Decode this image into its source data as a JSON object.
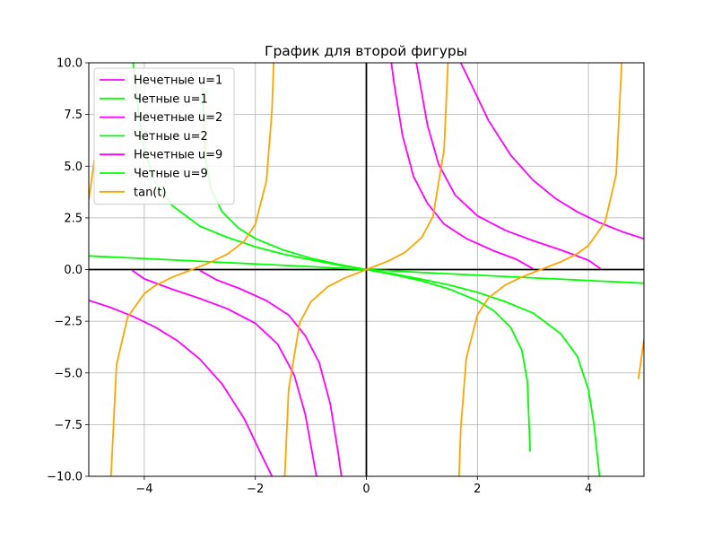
{
  "chart_data": {
    "type": "line",
    "title": "График для второй фигуры",
    "xlim": [
      -5,
      5
    ],
    "ylim": [
      -10,
      10
    ],
    "xticks": [
      -4,
      -2,
      0,
      2,
      4
    ],
    "yticks": [
      -10.0,
      -7.5,
      -5.0,
      -2.5,
      0.0,
      2.5,
      5.0,
      7.5,
      10.0
    ],
    "xtick_labels": [
      "−4",
      "−2",
      "0",
      "2",
      "4"
    ],
    "ytick_labels": [
      "−10.0",
      "−7.5",
      "−5.0",
      "−2.5",
      "0.0",
      "2.5",
      "5.0",
      "7.5",
      "10.0"
    ],
    "grid": true,
    "legend_position": "upper-left",
    "series": [
      {
        "name": "Нечетные u=1",
        "color": "#ff00ff",
        "segments": [
          [
            [
              -5.0,
              -1.49
            ],
            [
              -4.6,
              -1.84
            ],
            [
              -4.2,
              -2.27
            ],
            [
              -3.8,
              -2.79
            ],
            [
              -3.4,
              -3.45
            ],
            [
              -3.0,
              -4.33
            ],
            [
              -2.6,
              -5.53
            ],
            [
              -2.2,
              -7.21
            ],
            [
              -1.9,
              -8.9
            ],
            [
              -1.7,
              -10.0
            ]
          ],
          [
            [
              1.7,
              10.0
            ],
            [
              1.9,
              8.9
            ],
            [
              2.2,
              7.21
            ],
            [
              2.6,
              5.53
            ],
            [
              3.0,
              4.33
            ],
            [
              3.4,
              3.45
            ],
            [
              3.8,
              2.79
            ],
            [
              4.2,
              2.27
            ],
            [
              4.6,
              1.84
            ],
            [
              5.0,
              1.49
            ]
          ]
        ]
      },
      {
        "name": "Четные u=1",
        "color": "#00ff00",
        "segments": [
          [
            [
              -5.0,
              0.66
            ],
            [
              -4.0,
              0.53
            ],
            [
              -3.0,
              0.4
            ],
            [
              -2.0,
              0.27
            ],
            [
              -1.0,
              0.14
            ],
            [
              0.0,
              0.0
            ],
            [
              1.0,
              -0.14
            ],
            [
              2.0,
              -0.27
            ],
            [
              3.0,
              -0.4
            ],
            [
              4.0,
              -0.53
            ],
            [
              5.0,
              -0.66
            ]
          ]
        ]
      },
      {
        "name": "Нечетные u=2",
        "color": "#ff00ff",
        "segments": [
          [
            [
              -4.22,
              -0.04
            ],
            [
              -4.0,
              -0.45
            ],
            [
              -3.5,
              -0.95
            ],
            [
              -3.0,
              -1.4
            ],
            [
              -2.5,
              -1.9
            ],
            [
              -2.0,
              -2.6
            ],
            [
              -1.6,
              -3.6
            ],
            [
              -1.3,
              -5.1
            ],
            [
              -1.1,
              -7.0
            ],
            [
              -0.9,
              -10.0
            ]
          ],
          [
            [
              0.9,
              10.0
            ],
            [
              1.1,
              7.0
            ],
            [
              1.3,
              5.1
            ],
            [
              1.6,
              3.6
            ],
            [
              2.0,
              2.6
            ],
            [
              2.5,
              1.9
            ],
            [
              3.0,
              1.4
            ],
            [
              3.5,
              0.95
            ],
            [
              4.0,
              0.45
            ],
            [
              4.22,
              0.04
            ]
          ]
        ]
      },
      {
        "name": "Четные u=2",
        "color": "#00ff00",
        "segments": [
          [
            [
              -4.2,
              10.0
            ],
            [
              -4.1,
              7.5
            ],
            [
              -4.0,
              5.8
            ],
            [
              -3.8,
              4.2
            ],
            [
              -3.5,
              3.1
            ],
            [
              -3.0,
              2.1
            ],
            [
              -2.5,
              1.55
            ],
            [
              -2.0,
              1.1
            ],
            [
              -1.5,
              0.75
            ],
            [
              -1.0,
              0.47
            ],
            [
              -0.5,
              0.22
            ],
            [
              0.0,
              0.0
            ],
            [
              0.5,
              -0.22
            ],
            [
              1.0,
              -0.47
            ],
            [
              1.5,
              -0.75
            ],
            [
              2.0,
              -1.1
            ],
            [
              2.5,
              -1.55
            ],
            [
              3.0,
              -2.1
            ],
            [
              3.5,
              -3.1
            ],
            [
              3.8,
              -4.2
            ],
            [
              4.0,
              -5.8
            ],
            [
              4.1,
              -7.5
            ],
            [
              4.2,
              -10.0
            ]
          ]
        ]
      },
      {
        "name": "Нечетные u=9",
        "color": "#ff00ff",
        "segments": [
          [
            [
              -3.0,
              -0.04
            ],
            [
              -2.7,
              -0.5
            ],
            [
              -2.3,
              -0.9
            ],
            [
              -1.8,
              -1.5
            ],
            [
              -1.4,
              -2.2
            ],
            [
              -1.1,
              -3.2
            ],
            [
              -0.85,
              -4.5
            ],
            [
              -0.65,
              -6.5
            ],
            [
              -0.5,
              -9.0
            ],
            [
              -0.45,
              -10.0
            ]
          ],
          [
            [
              0.45,
              10.0
            ],
            [
              0.5,
              9.0
            ],
            [
              0.65,
              6.5
            ],
            [
              0.85,
              4.5
            ],
            [
              1.1,
              3.2
            ],
            [
              1.4,
              2.2
            ],
            [
              1.8,
              1.5
            ],
            [
              2.3,
              0.9
            ],
            [
              2.7,
              0.5
            ],
            [
              3.0,
              0.04
            ]
          ]
        ]
      },
      {
        "name": "Четные u=9",
        "color": "#00ff00",
        "segments": [
          [
            [
              -2.95,
              8.8
            ],
            [
              -2.9,
              5.4
            ],
            [
              -2.8,
              3.9
            ],
            [
              -2.6,
              2.8
            ],
            [
              -2.3,
              2.0
            ],
            [
              -2.0,
              1.5
            ],
            [
              -1.5,
              0.95
            ],
            [
              -1.0,
              0.55
            ],
            [
              -0.5,
              0.25
            ],
            [
              0.0,
              0.0
            ],
            [
              0.5,
              -0.25
            ],
            [
              1.0,
              -0.55
            ],
            [
              1.5,
              -0.95
            ],
            [
              2.0,
              -1.5
            ],
            [
              2.3,
              -2.0
            ],
            [
              2.6,
              -2.8
            ],
            [
              2.8,
              -3.9
            ],
            [
              2.9,
              -5.4
            ],
            [
              2.95,
              -8.8
            ]
          ]
        ]
      },
      {
        "name": "tan(t)",
        "color": "#ffa500",
        "segments": [
          [
            [
              -5.0,
              3.38
            ],
            [
              -4.9,
              5.3
            ]
          ],
          [
            [
              -4.6,
              -10.0
            ],
            [
              -4.5,
              -4.6
            ],
            [
              -4.3,
              -2.3
            ],
            [
              -4.0,
              -1.16
            ],
            [
              -3.8,
              -0.77
            ],
            [
              -3.5,
              -0.37
            ],
            [
              -3.14159,
              0.0
            ],
            [
              -2.8,
              0.36
            ],
            [
              -2.5,
              0.75
            ],
            [
              -2.2,
              1.37
            ],
            [
              -2.0,
              2.19
            ],
            [
              -1.8,
              4.29
            ],
            [
              -1.7,
              7.7
            ],
            [
              -1.67,
              10.0
            ]
          ],
          [
            [
              -1.47,
              -10.0
            ],
            [
              -1.4,
              -5.8
            ],
            [
              -1.2,
              -2.57
            ],
            [
              -1.0,
              -1.56
            ],
            [
              -0.7,
              -0.84
            ],
            [
              -0.4,
              -0.42
            ],
            [
              0.0,
              0.0
            ],
            [
              0.4,
              0.42
            ],
            [
              0.7,
              0.84
            ],
            [
              1.0,
              1.56
            ],
            [
              1.2,
              2.57
            ],
            [
              1.4,
              5.8
            ],
            [
              1.47,
              10.0
            ]
          ],
          [
            [
              1.67,
              -10.0
            ],
            [
              1.7,
              -7.7
            ],
            [
              1.8,
              -4.29
            ],
            [
              2.0,
              -2.19
            ],
            [
              2.2,
              -1.37
            ],
            [
              2.5,
              -0.75
            ],
            [
              2.8,
              -0.36
            ],
            [
              3.14159,
              0.0
            ],
            [
              3.5,
              0.37
            ],
            [
              3.8,
              0.77
            ],
            [
              4.0,
              1.16
            ],
            [
              4.3,
              2.3
            ],
            [
              4.5,
              4.6
            ],
            [
              4.6,
              10.0
            ]
          ],
          [
            [
              4.9,
              -5.3
            ],
            [
              5.0,
              -3.38
            ]
          ]
        ]
      }
    ]
  }
}
